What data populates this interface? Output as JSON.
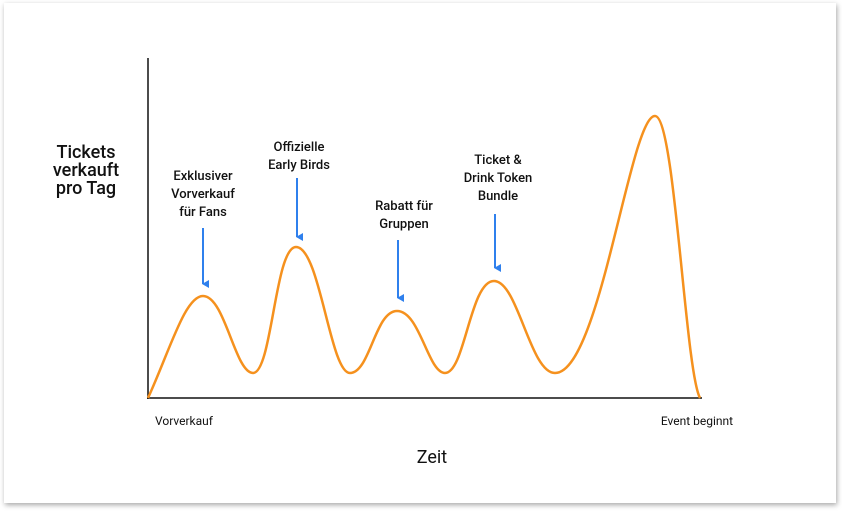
{
  "y_axis_label": [
    "Tickets",
    "verkauft",
    "pro Tag"
  ],
  "x_axis_label": "Zeit",
  "x_start_label": "Vorverkauf",
  "x_end_label": "Event beginnt",
  "annotations": [
    {
      "lines": [
        "Exklusiver",
        "Vorverkauf",
        "für Fans"
      ]
    },
    {
      "lines": [
        "Offizielle",
        "Early Birds"
      ]
    },
    {
      "lines": [
        "Rabatt für",
        "Gruppen"
      ]
    },
    {
      "lines": [
        "Ticket &",
        "Drink Token",
        "Bundle"
      ]
    }
  ]
}
